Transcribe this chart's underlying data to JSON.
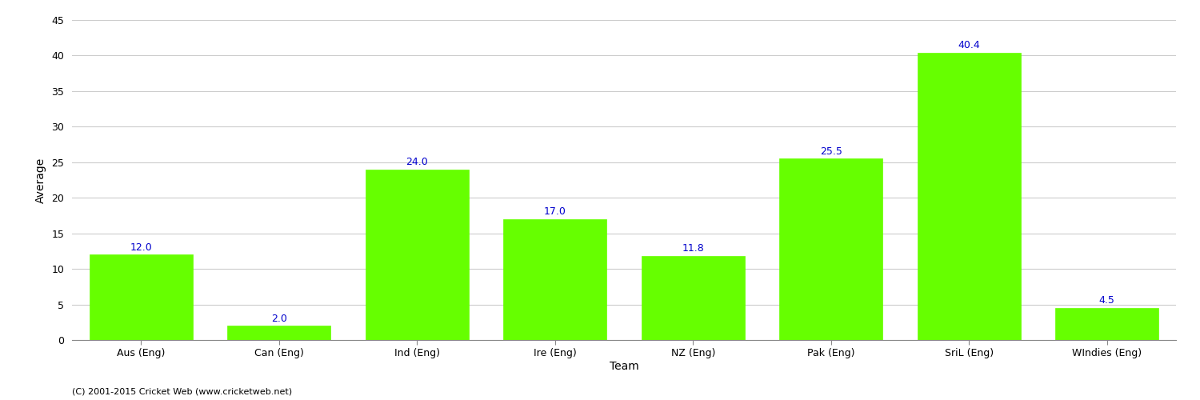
{
  "categories": [
    "Aus (Eng)",
    "Can (Eng)",
    "Ind (Eng)",
    "Ire (Eng)",
    "NZ (Eng)",
    "Pak (Eng)",
    "SriL (Eng)",
    "WIndies (Eng)"
  ],
  "values": [
    12.0,
    2.0,
    24.0,
    17.0,
    11.8,
    25.5,
    40.4,
    4.5
  ],
  "bar_color": "#66ff00",
  "bar_edge_color": "#66ff00",
  "ylabel": "Average",
  "xlabel": "Team",
  "ylim": [
    0,
    45
  ],
  "yticks": [
    0,
    5,
    10,
    15,
    20,
    25,
    30,
    35,
    40,
    45
  ],
  "label_color": "#0000cc",
  "label_fontsize": 9,
  "axis_label_fontsize": 10,
  "tick_fontsize": 9,
  "grid_color": "#cccccc",
  "bg_color": "#ffffff",
  "footer": "(C) 2001-2015 Cricket Web (www.cricketweb.net)",
  "footer_fontsize": 8,
  "bar_width": 0.75
}
